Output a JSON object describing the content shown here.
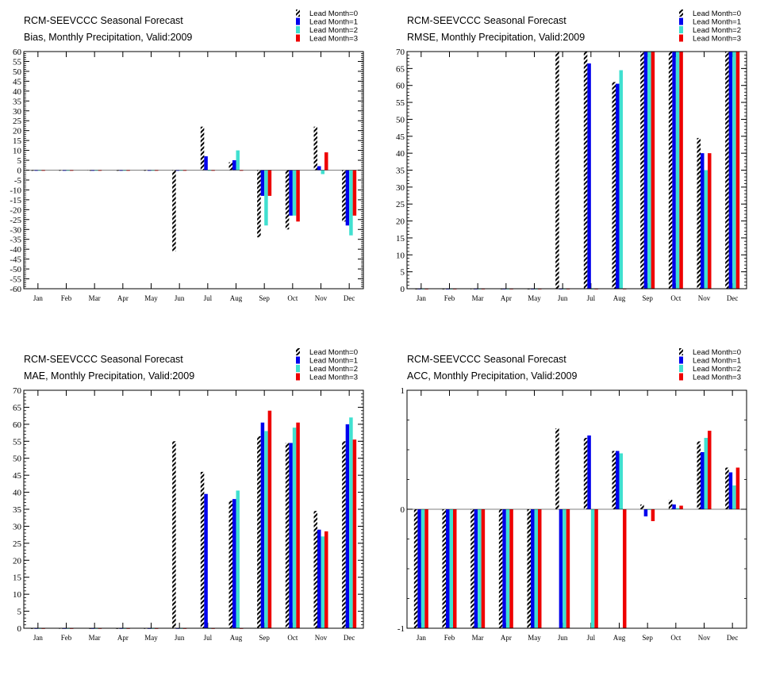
{
  "colors": {
    "lead_month_0": "#000000",
    "lead_month_1": "#0000ee",
    "lead_month_2": "#40e0d0",
    "lead_month_3": "#ee0000"
  },
  "chart_data": [
    {
      "type": "bar",
      "title": "RCM-SEEVCCC Seasonal Forecast",
      "subtitle": "Bias, Monthly Precipitation, Valid:2009",
      "categories": [
        "Jan",
        "Feb",
        "Mar",
        "Apr",
        "May",
        "Jun",
        "Jul",
        "Aug",
        "Sep",
        "Oct",
        "Nov",
        "Dec"
      ],
      "ylim": [
        -60,
        60
      ],
      "yticks": [
        60,
        55,
        50,
        45,
        40,
        35,
        30,
        25,
        20,
        15,
        10,
        5,
        0,
        -5,
        -10,
        -15,
        -20,
        -25,
        -30,
        -35,
        -40,
        -45,
        -50,
        -55,
        -60
      ],
      "legend": "top-right",
      "grid": false,
      "series": [
        {
          "name": "Lead Month=0",
          "values": [
            0,
            0,
            0,
            0,
            0,
            -41,
            22,
            4,
            -34,
            -30,
            22,
            -26
          ]
        },
        {
          "name": "Lead Month=1",
          "values": [
            0,
            0,
            0,
            0,
            0,
            0,
            7,
            5,
            -13,
            -23,
            2,
            -28
          ]
        },
        {
          "name": "Lead Month=2",
          "values": [
            0,
            0,
            0,
            0,
            0,
            0,
            0,
            10,
            -28,
            -23,
            -2,
            -33
          ]
        },
        {
          "name": "Lead Month=3",
          "values": [
            0,
            0,
            0,
            0,
            0,
            0,
            0,
            0,
            -13,
            -26,
            9,
            -23
          ]
        }
      ]
    },
    {
      "type": "bar",
      "title": "RCM-SEEVCCC Seasonal Forecast",
      "subtitle": "RMSE, Monthly Precipitation, Valid:2009",
      "categories": [
        "Jan",
        "Feb",
        "Mar",
        "Apr",
        "May",
        "Jun",
        "Jul",
        "Aug",
        "Sep",
        "Oct",
        "Nov",
        "Dec"
      ],
      "ylim": [
        0,
        70
      ],
      "yticks": [
        70,
        65,
        60,
        55,
        50,
        45,
        40,
        35,
        30,
        25,
        20,
        15,
        10,
        5,
        0
      ],
      "legend": "top-right",
      "grid": false,
      "series": [
        {
          "name": "Lead Month=0",
          "values": [
            0,
            0,
            0,
            0,
            0,
            70,
            70,
            61,
            70,
            70,
            44.5,
            70
          ]
        },
        {
          "name": "Lead Month=1",
          "values": [
            0,
            0,
            0,
            0,
            0,
            0,
            66.5,
            60.5,
            70,
            70,
            40,
            70
          ]
        },
        {
          "name": "Lead Month=2",
          "values": [
            0,
            0,
            0,
            0,
            0,
            0,
            0,
            64.5,
            70,
            70,
            35,
            70
          ]
        },
        {
          "name": "Lead Month=3",
          "values": [
            0,
            0,
            0,
            0,
            0,
            0,
            0,
            0,
            70,
            70,
            40,
            70
          ]
        }
      ]
    },
    {
      "type": "bar",
      "title": "RCM-SEEVCCC Seasonal Forecast",
      "subtitle": "MAE, Monthly Precipitation, Valid:2009",
      "categories": [
        "Jan",
        "Feb",
        "Mar",
        "Apr",
        "May",
        "Jun",
        "Jul",
        "Aug",
        "Sep",
        "Oct",
        "Nov",
        "Dec"
      ],
      "ylim": [
        0,
        70
      ],
      "yticks": [
        70,
        65,
        60,
        55,
        50,
        45,
        40,
        35,
        30,
        25,
        20,
        15,
        10,
        5,
        0
      ],
      "legend": "top-right",
      "grid": false,
      "series": [
        {
          "name": "Lead Month=0",
          "values": [
            0,
            0,
            0,
            0,
            0,
            55,
            46,
            37.5,
            56.5,
            54.5,
            34.5,
            55
          ]
        },
        {
          "name": "Lead Month=1",
          "values": [
            0,
            0,
            0,
            0,
            0,
            0,
            39.5,
            38,
            60.5,
            54.5,
            29,
            60
          ]
        },
        {
          "name": "Lead Month=2",
          "values": [
            0,
            0,
            0,
            0,
            0,
            0,
            0,
            40.5,
            58,
            59,
            27,
            62
          ]
        },
        {
          "name": "Lead Month=3",
          "values": [
            0,
            0,
            0,
            0,
            0,
            0,
            0,
            0,
            64,
            60.5,
            28.5,
            55.5
          ]
        }
      ]
    },
    {
      "type": "bar",
      "title": "RCM-SEEVCCC Seasonal Forecast",
      "subtitle": "ACC, Monthly Precipitation, Valid:2009",
      "categories": [
        "Jan",
        "Feb",
        "Mar",
        "Apr",
        "May",
        "Jun",
        "Jul",
        "Aug",
        "Sep",
        "Oct",
        "Nov",
        "Dec"
      ],
      "ylim": [
        -1,
        1
      ],
      "yticks": [
        1,
        0,
        -1
      ],
      "legend": "top-right",
      "grid": false,
      "series": [
        {
          "name": "Lead Month=0",
          "values": [
            -1,
            -1,
            -1,
            -1,
            -1,
            0.68,
            0.6,
            0.49,
            0.04,
            0.08,
            0.57,
            0.35
          ]
        },
        {
          "name": "Lead Month=1",
          "values": [
            -1,
            -1,
            -1,
            -1,
            -1,
            -1,
            0.62,
            0.49,
            -0.06,
            0.04,
            0.48,
            0.31
          ]
        },
        {
          "name": "Lead Month=2",
          "values": [
            -1,
            -1,
            -1,
            -1,
            -1,
            -1,
            -1,
            0.47,
            0,
            0.01,
            0.6,
            0.2
          ]
        },
        {
          "name": "Lead Month=3",
          "values": [
            -1,
            -1,
            -1,
            -1,
            -1,
            -1,
            -1,
            -1,
            -0.1,
            0.03,
            0.66,
            0.35
          ]
        }
      ]
    }
  ]
}
